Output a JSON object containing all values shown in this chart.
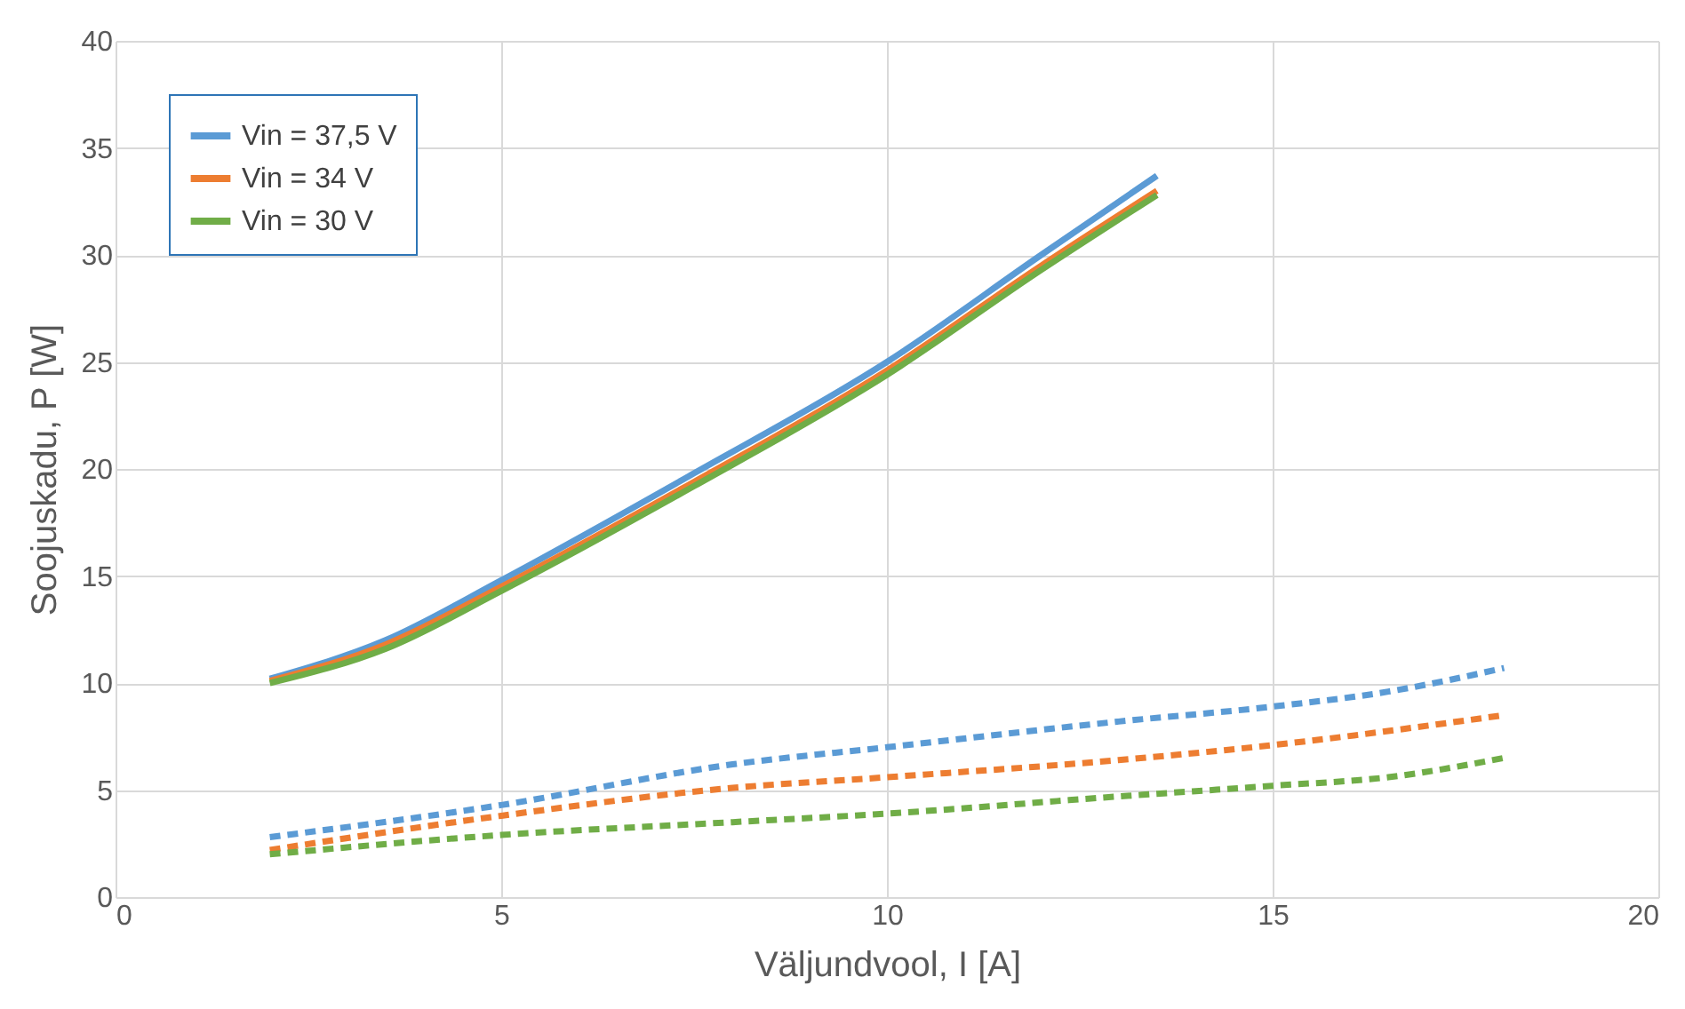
{
  "chart_data": {
    "type": "line",
    "xlabel": "Väljundvool, I [A]",
    "ylabel": "Soojuskadu, P [W]",
    "xlim": [
      0,
      20
    ],
    "xticks": [
      0,
      5,
      10,
      15,
      20
    ],
    "ylim": [
      0,
      40
    ],
    "yticks": [
      0,
      5,
      10,
      15,
      20,
      25,
      30,
      35,
      40
    ],
    "grid": true,
    "legend": "top left",
    "marker": "none",
    "series": [
      {
        "name": "Vin = 37,5 V",
        "color": "#5b9bd5",
        "line_style": "solid",
        "x": [
          2,
          3.5,
          5,
          7.5,
          10,
          12,
          13.5
        ],
        "values": [
          10.2,
          12.0,
          14.8,
          19.8,
          25.0,
          30.0,
          33.7
        ]
      },
      {
        "name": "Vin = 34 V",
        "color": "#ed7d31",
        "line_style": "solid",
        "x": [
          2,
          3.5,
          5,
          7.5,
          10,
          12,
          13.5
        ],
        "values": [
          10.1,
          11.8,
          14.5,
          19.4,
          24.6,
          29.5,
          33.0
        ]
      },
      {
        "name": "Vin = 30 V",
        "color": "#70ad47",
        "line_style": "solid",
        "x": [
          2,
          3.5,
          5,
          7.5,
          10,
          12,
          13.5
        ],
        "values": [
          10.0,
          11.6,
          14.3,
          19.2,
          24.4,
          29.3,
          32.8
        ]
      },
      {
        "color": "#5b9bd5",
        "line_style": "dashed",
        "x": [
          2,
          5,
          8,
          10,
          13,
          15,
          16.5,
          18
        ],
        "values": [
          2.8,
          4.3,
          6.2,
          7.0,
          8.2,
          8.9,
          9.6,
          10.7
        ]
      },
      {
        "color": "#ed7d31",
        "line_style": "dashed",
        "x": [
          2,
          5,
          8,
          10,
          13,
          15,
          18
        ],
        "values": [
          2.2,
          3.8,
          5.1,
          5.6,
          6.4,
          7.1,
          8.5
        ]
      },
      {
        "color": "#70ad47",
        "line_style": "dashed",
        "x": [
          2,
          5,
          8,
          10,
          13,
          15,
          16.5,
          18
        ],
        "values": [
          2.0,
          2.9,
          3.5,
          3.9,
          4.7,
          5.2,
          5.6,
          6.5
        ]
      }
    ]
  }
}
